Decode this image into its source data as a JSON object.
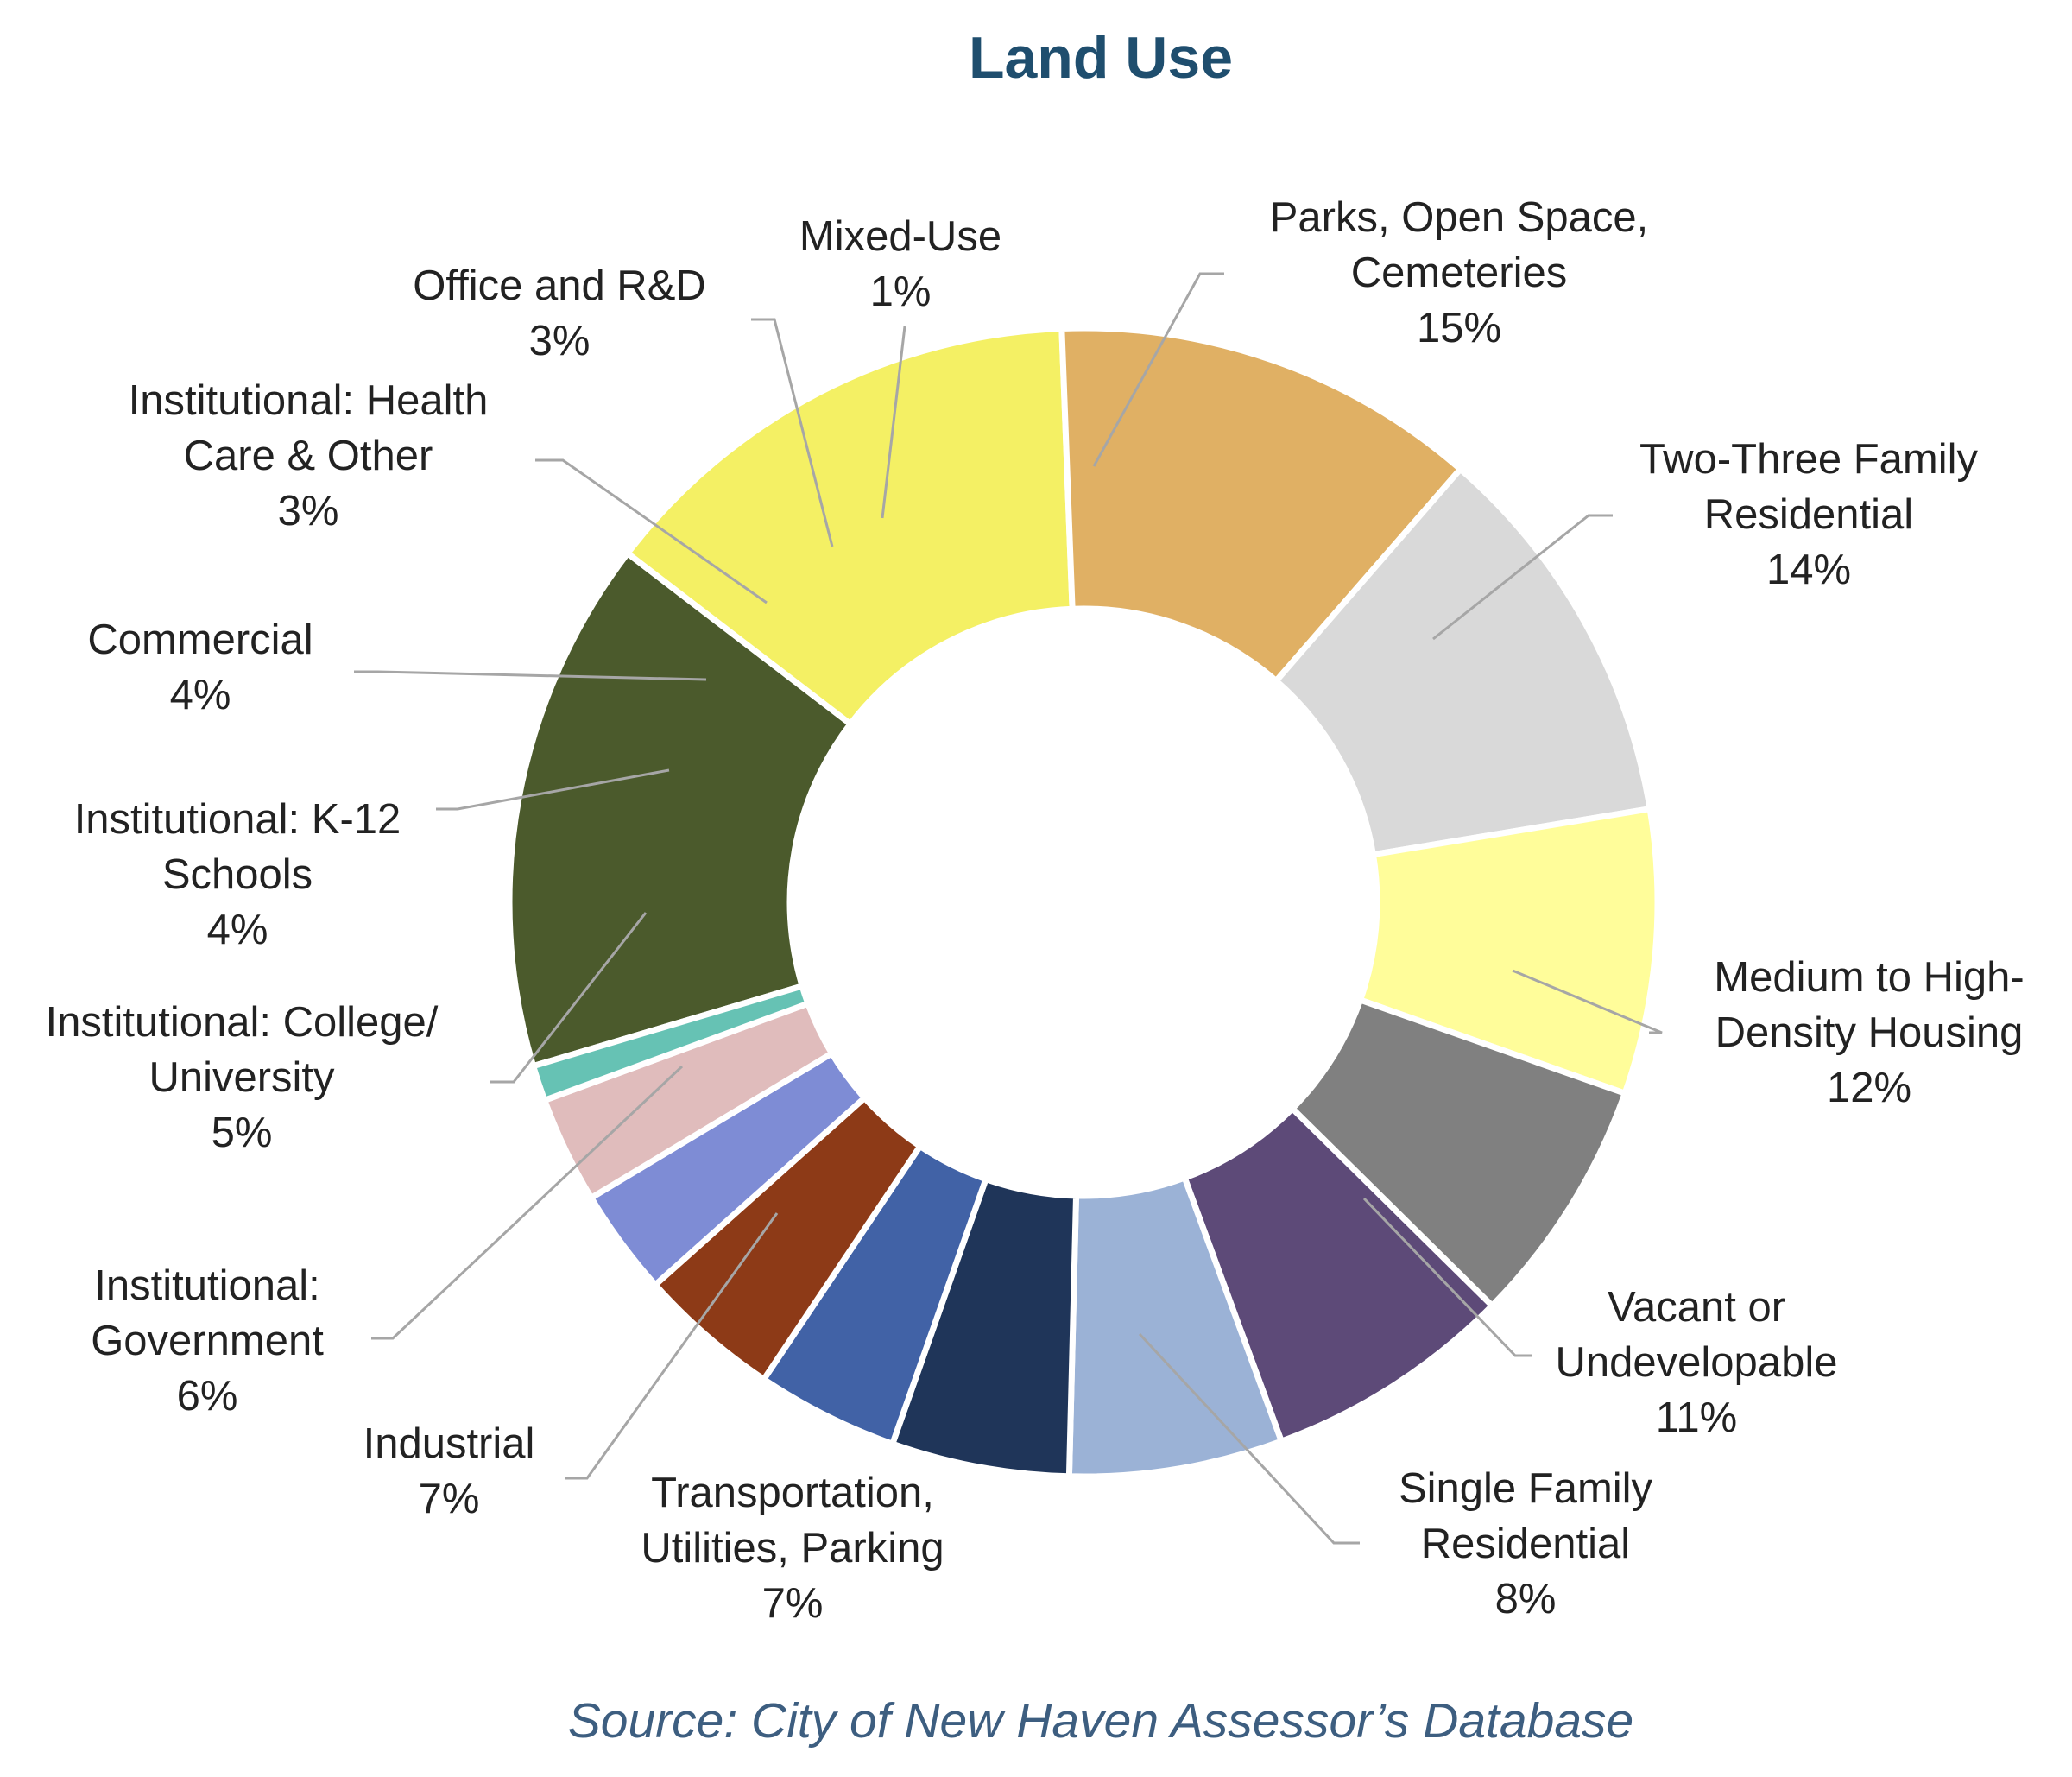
{
  "chart_data": {
    "type": "pie",
    "variant": "donut",
    "title": "Land Use",
    "source": "Source: City of New Haven Assessor’s Database",
    "slices": [
      {
        "label": [
          "Parks, Open Space,",
          "Cemeteries",
          "15%"
        ],
        "value": 15,
        "color": "#4b5a2c"
      },
      {
        "label": [
          "Two-Three Family",
          "Residential",
          "14%"
        ],
        "value": 14,
        "color": "#f4f064"
      },
      {
        "label": [
          "Medium to High-",
          "Density Housing",
          "12%"
        ],
        "value": 12,
        "color": "#e0b064"
      },
      {
        "label": [
          "Vacant or",
          "Undevelopable",
          "11%"
        ],
        "value": 11,
        "color": "#d9d9d9"
      },
      {
        "label": [
          "Single Family",
          "Residential",
          "8%"
        ],
        "value": 8,
        "color": "#fffd9a"
      },
      {
        "label": [
          "Transportation,",
          "Utilities, Parking",
          "7%"
        ],
        "value": 7,
        "color": "#808080"
      },
      {
        "label": [
          "Industrial",
          "7%"
        ],
        "value": 7,
        "color": "#5d4a78"
      },
      {
        "label": [
          "Institutional:",
          "Government",
          "6%"
        ],
        "value": 6,
        "color": "#9bb2d6"
      },
      {
        "label": [
          "Institutional: College/",
          "University",
          "5%"
        ],
        "value": 5,
        "color": "#1f3559"
      },
      {
        "label": [
          "Institutional: K-12",
          "Schools",
          "4%"
        ],
        "value": 4,
        "color": "#4162a6"
      },
      {
        "label": [
          "Commercial",
          "4%"
        ],
        "value": 4,
        "color": "#8d3a17"
      },
      {
        "label": [
          "Institutional: Health",
          "Care & Other",
          "3%"
        ],
        "value": 3,
        "color": "#7e8cd5"
      },
      {
        "label": [
          "Office and R&D",
          "3%"
        ],
        "value": 3,
        "color": "#e0bcbc"
      },
      {
        "label": [
          "Mixed-Use",
          "1%"
        ],
        "value": 1,
        "color": "#66c2b4"
      }
    ]
  }
}
